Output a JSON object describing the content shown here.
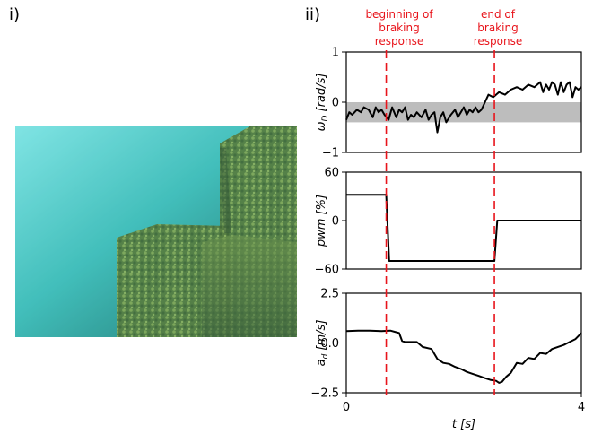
{
  "panels": {
    "left_label": "i)",
    "right_label": "ii)"
  },
  "photo": {
    "description_icon": "underwater-photo"
  },
  "annotations": {
    "begin": [
      "beginning of",
      "braking",
      "response"
    ],
    "end": [
      "end of",
      "braking",
      "response"
    ],
    "line_color": "#e8141b"
  },
  "chart_data": [
    {
      "type": "line",
      "ylabel_main": "ω",
      "ylabel_sub": "D",
      "ylabel_unit": "[rad/s]",
      "yticks": [
        1,
        0,
        -1
      ],
      "ytick_labels": [
        "1",
        "0",
        "−1"
      ],
      "ylim": [
        -1,
        1
      ],
      "xlim": [
        0,
        4
      ],
      "band": [
        -0.4,
        0.0
      ],
      "band_color": "#bdbdbd",
      "x": [
        0,
        0.05,
        0.1,
        0.18,
        0.25,
        0.3,
        0.38,
        0.45,
        0.5,
        0.55,
        0.6,
        0.65,
        0.72,
        0.78,
        0.85,
        0.9,
        0.95,
        1.0,
        1.05,
        1.1,
        1.15,
        1.2,
        1.28,
        1.35,
        1.4,
        1.45,
        1.5,
        1.55,
        1.6,
        1.65,
        1.7,
        1.78,
        1.85,
        1.9,
        1.95,
        2.0,
        2.05,
        2.1,
        2.15,
        2.2,
        2.25,
        2.3,
        2.36,
        2.42,
        2.5,
        2.6,
        2.7,
        2.8,
        2.9,
        3.0,
        3.1,
        3.2,
        3.3,
        3.35,
        3.4,
        3.45,
        3.5,
        3.55,
        3.6,
        3.65,
        3.7,
        3.75,
        3.8,
        3.85,
        3.9,
        3.95,
        4.0
      ],
      "y": [
        -0.35,
        -0.2,
        -0.25,
        -0.15,
        -0.2,
        -0.1,
        -0.15,
        -0.3,
        -0.1,
        -0.2,
        -0.15,
        -0.25,
        -0.35,
        -0.1,
        -0.3,
        -0.15,
        -0.2,
        -0.1,
        -0.35,
        -0.25,
        -0.3,
        -0.2,
        -0.3,
        -0.15,
        -0.35,
        -0.25,
        -0.2,
        -0.6,
        -0.3,
        -0.2,
        -0.4,
        -0.25,
        -0.15,
        -0.3,
        -0.2,
        -0.1,
        -0.25,
        -0.15,
        -0.2,
        -0.1,
        -0.2,
        -0.15,
        0.0,
        0.15,
        0.1,
        0.2,
        0.15,
        0.25,
        0.3,
        0.25,
        0.35,
        0.3,
        0.4,
        0.2,
        0.35,
        0.25,
        0.4,
        0.35,
        0.15,
        0.4,
        0.2,
        0.35,
        0.4,
        0.1,
        0.3,
        0.25,
        0.3
      ]
    },
    {
      "type": "line",
      "ylabel_main": "pwm",
      "ylabel_sub": "",
      "ylabel_unit": "[%]",
      "yticks": [
        60,
        0,
        -60
      ],
      "ytick_labels": [
        "60",
        "0",
        "−60"
      ],
      "ylim": [
        -60,
        60
      ],
      "xlim": [
        0,
        4
      ],
      "x": [
        0,
        0.68,
        0.73,
        2.52,
        2.57,
        4.0
      ],
      "y": [
        32,
        32,
        -50,
        -50,
        0,
        0
      ]
    },
    {
      "type": "line",
      "ylabel_main": "a",
      "ylabel_sub": "d",
      "ylabel_unit": "[m/s]",
      "yticks": [
        2.5,
        0,
        -2.5
      ],
      "ytick_labels": [
        "2.5",
        "0.0",
        "−2.5"
      ],
      "ylim": [
        -2.5,
        2.5
      ],
      "xlim": [
        0,
        4
      ],
      "xticks": [
        0,
        4
      ],
      "xtick_labels": [
        "0",
        "4"
      ],
      "xlabel_main": "t",
      "xlabel_unit": "[s]",
      "x": [
        0,
        0.2,
        0.4,
        0.6,
        0.75,
        0.9,
        0.95,
        1.0,
        1.2,
        1.3,
        1.45,
        1.55,
        1.65,
        1.75,
        1.85,
        1.95,
        2.05,
        2.15,
        2.25,
        2.35,
        2.45,
        2.55,
        2.6,
        2.65,
        2.72,
        2.8,
        2.9,
        3.0,
        3.1,
        3.2,
        3.3,
        3.4,
        3.5,
        3.6,
        3.7,
        3.8,
        3.9,
        4.0
      ],
      "y": [
        0.6,
        0.62,
        0.62,
        0.6,
        0.62,
        0.5,
        0.1,
        0.05,
        0.05,
        -0.2,
        -0.3,
        -0.8,
        -1.0,
        -1.05,
        -1.2,
        -1.3,
        -1.45,
        -1.55,
        -1.65,
        -1.75,
        -1.85,
        -1.9,
        -2.0,
        -1.95,
        -1.7,
        -1.5,
        -1.0,
        -1.05,
        -0.75,
        -0.8,
        -0.5,
        -0.55,
        -0.3,
        -0.2,
        -0.1,
        0.05,
        0.2,
        0.5
      ]
    }
  ],
  "events": {
    "begin_t": 0.68,
    "end_t": 2.52
  }
}
